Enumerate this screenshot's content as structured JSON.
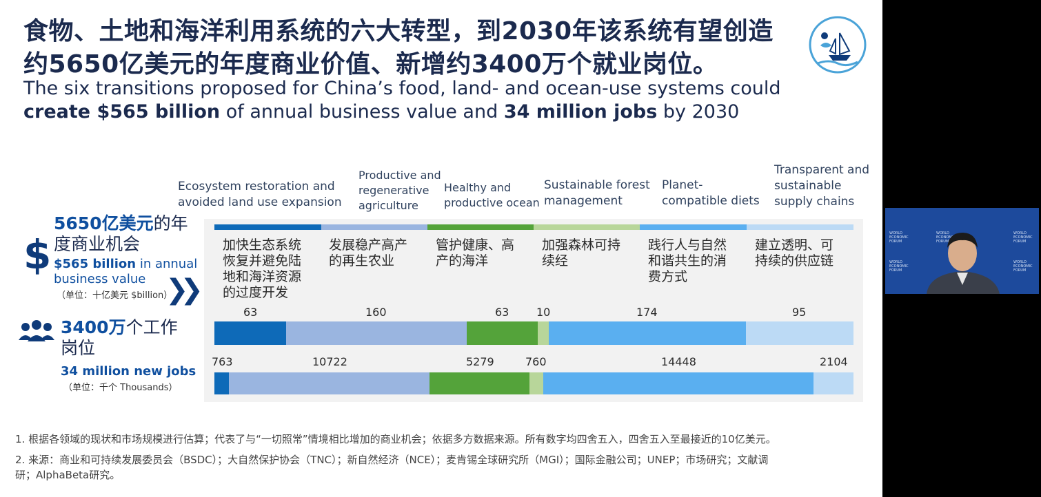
{
  "slide": {
    "title_cn_line1": "食物、土地和海洋利用系统的六大转型，到2030年该系统有望创造",
    "title_cn_line2": "约5650亿美元的年度商业价值、新增约3400万个就业岗位。",
    "title_en_line1": "The six transitions proposed for China’s food, land- and ocean-use systems could",
    "title_en_bold1": "create $565 billion",
    "title_en_mid": " of annual business value and ",
    "title_en_bold2": "34 million jobs",
    "title_en_end": " by 2030"
  },
  "colors": {
    "c1": "#0e6ab8",
    "c2": "#9ab5e0",
    "c3": "#54a33a",
    "c4": "#b8d69a",
    "c5": "#5aaff0",
    "c6": "#bcdaf5"
  },
  "transitions": [
    {
      "en": [
        "Ecosystem restoration and",
        "avoided land use expansion"
      ],
      "cn": [
        "加快生态系统",
        "恢复并避免陆",
        "地和海洋资源",
        "的过度开发"
      ],
      "value_billion": "63",
      "jobs_thousand": "763"
    },
    {
      "en": [
        "Productive and",
        "regenerative",
        "agriculture"
      ],
      "cn": [
        "发展稳产高产",
        "的再生农业"
      ],
      "value_billion": "160",
      "jobs_thousand": "10722"
    },
    {
      "en": [
        "Healthy and",
        "productive ocean"
      ],
      "cn": [
        "管护健康、高",
        "产的海洋"
      ],
      "value_billion": "63",
      "jobs_thousand": "5279"
    },
    {
      "en": [
        "Sustainable forest",
        "management"
      ],
      "cn": [
        "加强森林可持",
        "续经"
      ],
      "value_billion": "10",
      "jobs_thousand": "760"
    },
    {
      "en": [
        "Planet-",
        "compatible diets"
      ],
      "cn": [
        "践行人与自然",
        "和谐共生的消",
        "费方式"
      ],
      "value_billion": "174",
      "jobs_thousand": "14448"
    },
    {
      "en": [
        "Transparent and",
        "sustainable",
        "supply chains"
      ],
      "cn": [
        "建立透明、可",
        "持续的供应链"
      ],
      "value_billion": "95",
      "jobs_thousand": "2104"
    }
  ],
  "left": {
    "value_cn_bold": "5650亿美元",
    "value_cn_rest1": "的年",
    "value_cn_rest2": "度商业机会",
    "value_en_bold": "$565 billion",
    "value_en_rest1": " in annual",
    "value_en_rest2": "business value",
    "value_unit": "（单位：十亿美元 $billion）",
    "jobs_cn_bold": "3400万",
    "jobs_cn_rest1": "个工作",
    "jobs_cn_rest2": "岗位",
    "jobs_en": "34 million new jobs",
    "jobs_unit": "（单位：千个 Thousands）"
  },
  "footnotes": {
    "note1": "1. 根据各领域的现状和市场规模进行估算；代表了与“一切照常”情境相比增加的商业机会；依据多方数据来源。所有数字均四舍五入，四舍五入至最接近的10亿美元。",
    "note2a": "2. 来源：商业和可持续发展委员会（BSDC）；大自然保护协会（TNC）；新自然经济（NCE）；麦肯锡全球研究所（MGI）；国际金融公司；UNEP；市场研究；文献调",
    "note2b": "研；AlphaBeta研究。"
  },
  "icons": {
    "logo": "fish-boat-tree-logo-icon",
    "dollar": "dollar-icon",
    "people": "people-group-icon",
    "chevron": "double-chevron-right-icon"
  },
  "video": {
    "logo_text": "WORLD ECONOMIC FORUM"
  }
}
